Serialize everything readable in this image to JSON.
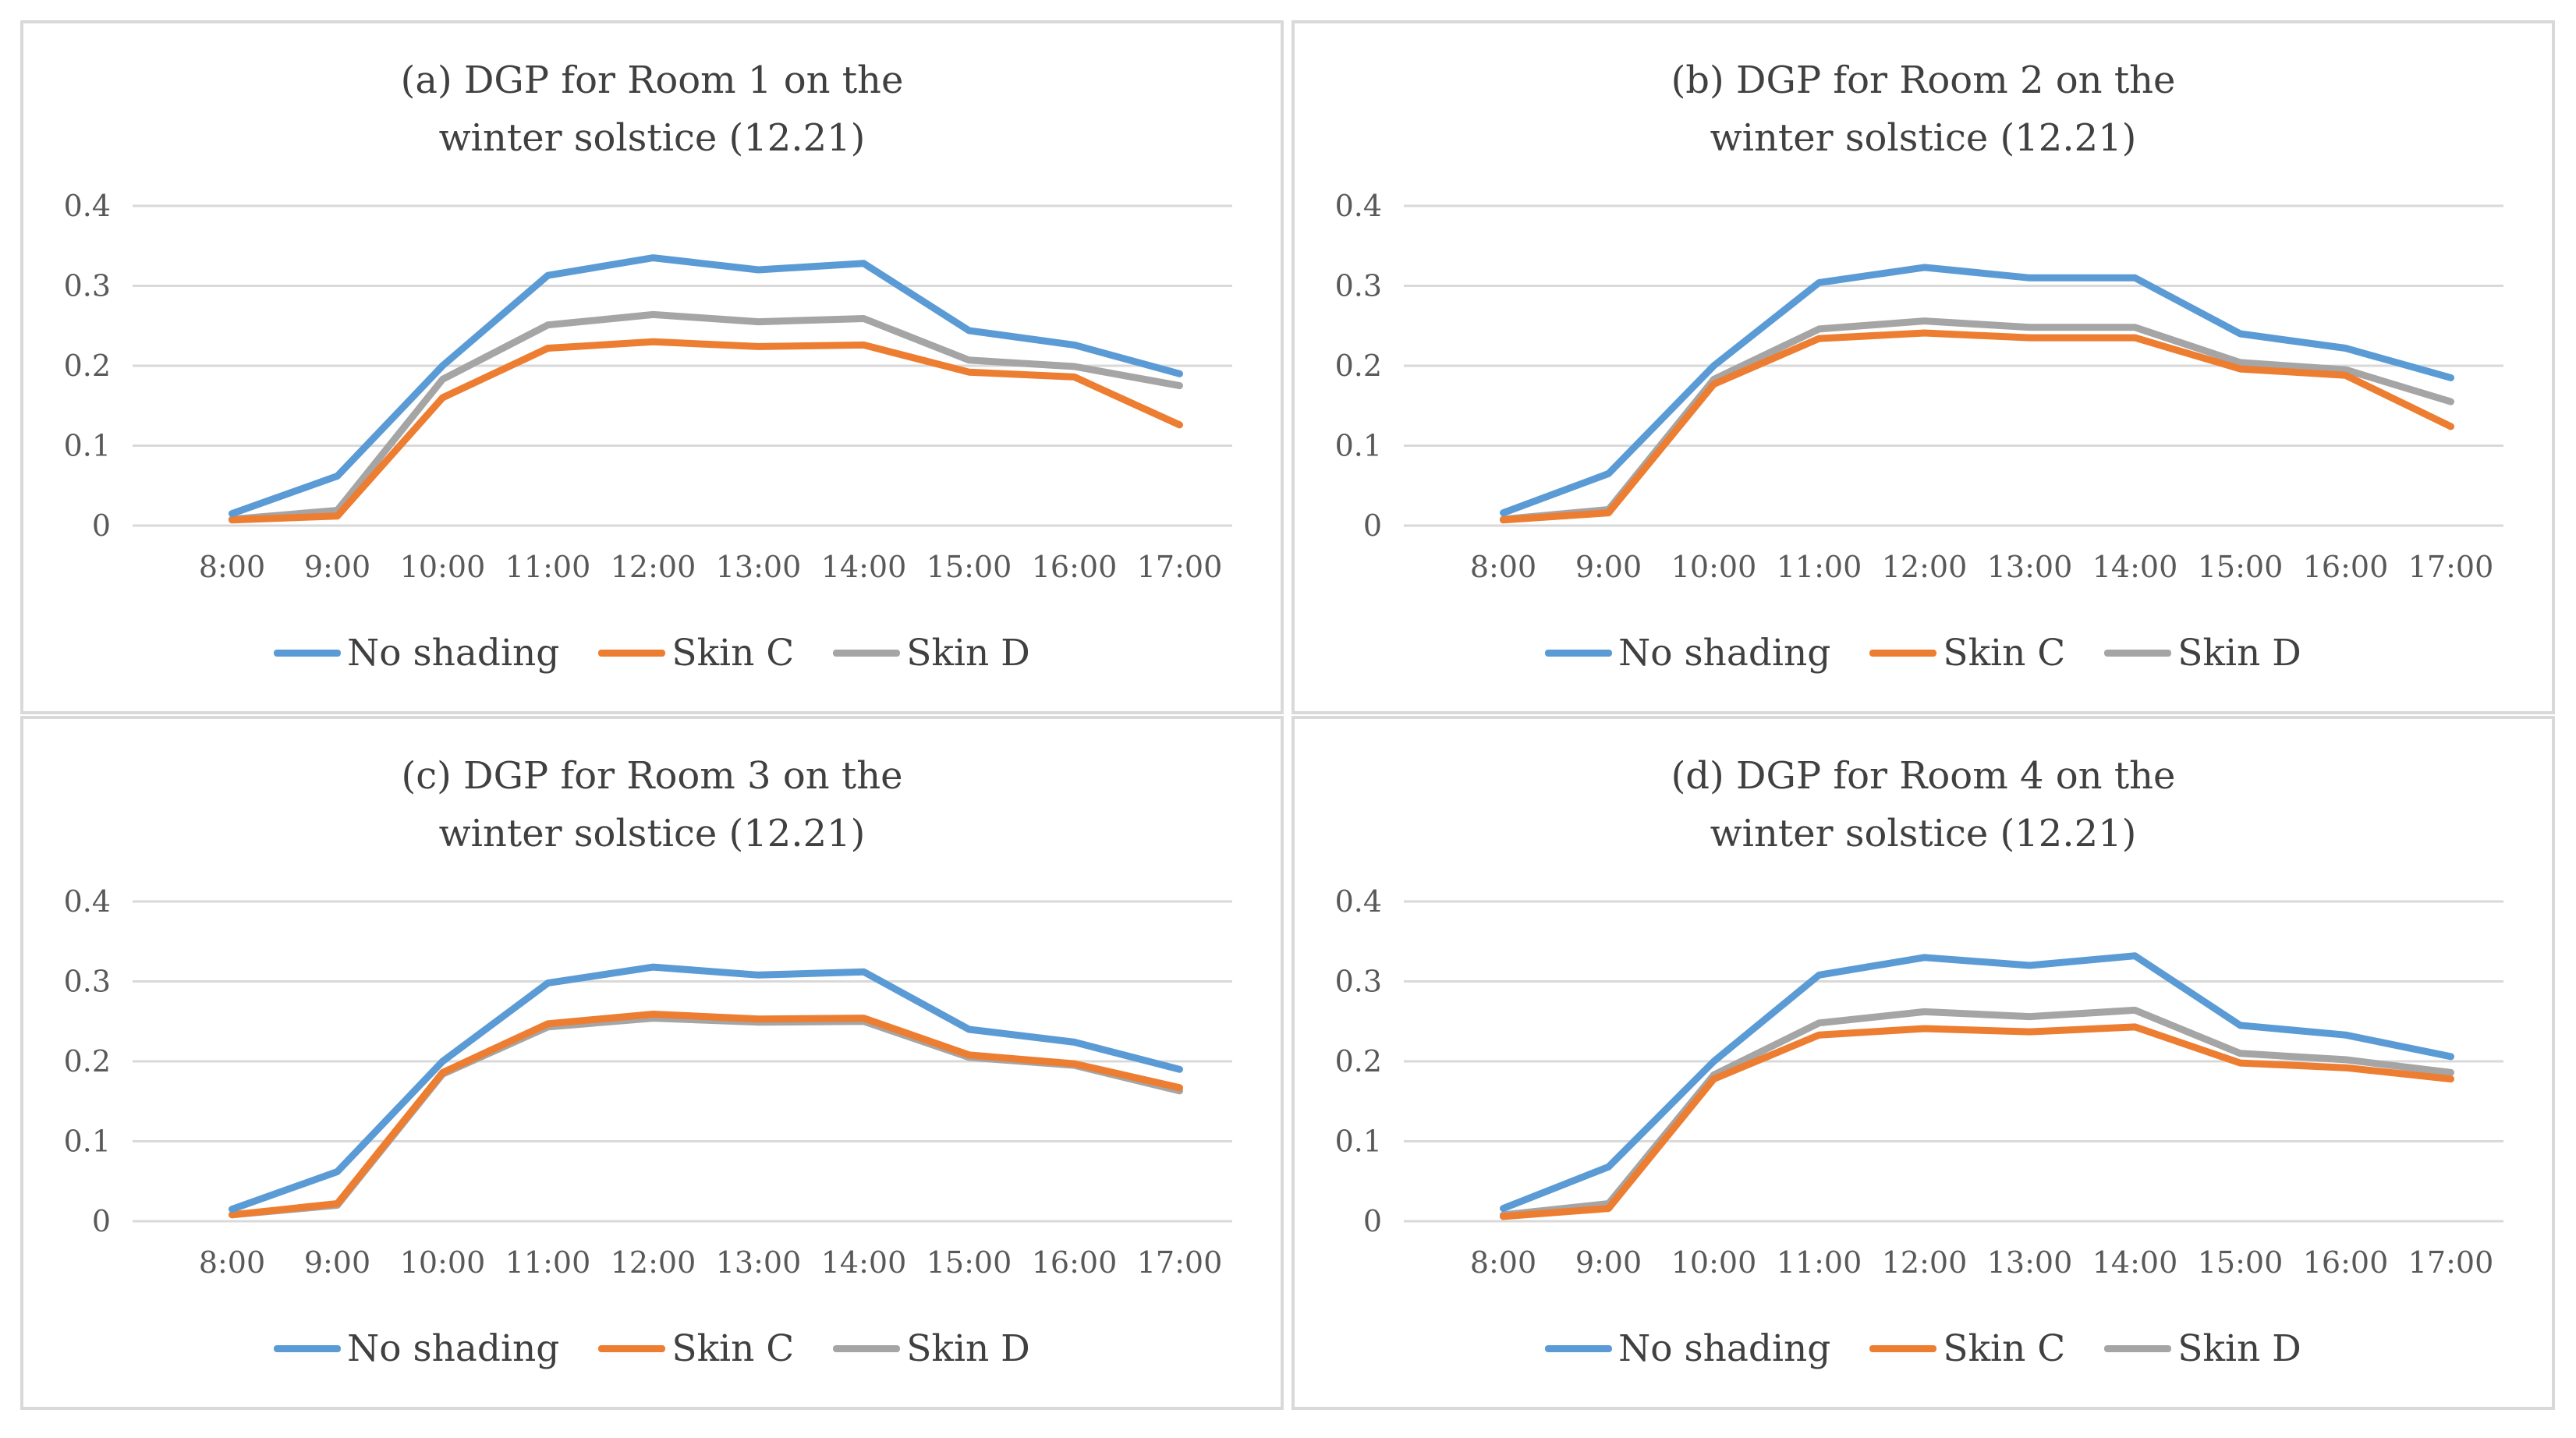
{
  "colors": {
    "no_shading": "#5b9bd5",
    "skin_c": "#ed7d31",
    "skin_d": "#a5a5a5"
  },
  "chart_data": [
    {
      "type": "line",
      "title_lines": [
        "(a) DGP for Room 1 on the",
        "winter solstice (12.21)"
      ],
      "categories": [
        "8:00",
        "9:00",
        "10:00",
        "11:00",
        "12:00",
        "13:00",
        "14:00",
        "15:00",
        "16:00",
        "17:00"
      ],
      "y_ticks": [
        "0",
        "0.1",
        "0.2",
        "0.3",
        "0.4"
      ],
      "ylim": [
        0,
        0.4
      ],
      "series": [
        {
          "name": "No shading",
          "values": [
            0.015,
            0.062,
            0.2,
            0.313,
            0.335,
            0.32,
            0.328,
            0.244,
            0.226,
            0.19
          ]
        },
        {
          "name": "Skin C",
          "values": [
            0.007,
            0.012,
            0.16,
            0.222,
            0.23,
            0.224,
            0.226,
            0.192,
            0.186,
            0.126
          ]
        },
        {
          "name": "Skin D",
          "values": [
            0.008,
            0.019,
            0.183,
            0.251,
            0.264,
            0.255,
            0.259,
            0.207,
            0.199,
            0.175
          ]
        }
      ]
    },
    {
      "type": "line",
      "title_lines": [
        "(b) DGP for Room 2 on the",
        "winter solstice (12.21)"
      ],
      "categories": [
        "8:00",
        "9:00",
        "10:00",
        "11:00",
        "12:00",
        "13:00",
        "14:00",
        "15:00",
        "16:00",
        "17:00"
      ],
      "y_ticks": [
        "0",
        "0.1",
        "0.2",
        "0.3",
        "0.4"
      ],
      "ylim": [
        0,
        0.4
      ],
      "series": [
        {
          "name": "No shading",
          "values": [
            0.016,
            0.065,
            0.2,
            0.304,
            0.323,
            0.31,
            0.31,
            0.24,
            0.222,
            0.185
          ]
        },
        {
          "name": "Skin C",
          "values": [
            0.007,
            0.016,
            0.177,
            0.234,
            0.241,
            0.235,
            0.235,
            0.196,
            0.188,
            0.124
          ]
        },
        {
          "name": "Skin D",
          "values": [
            0.008,
            0.02,
            0.183,
            0.246,
            0.256,
            0.248,
            0.248,
            0.204,
            0.195,
            0.155
          ]
        }
      ]
    },
    {
      "type": "line",
      "title_lines": [
        "(c) DGP for Room 3 on the",
        "winter solstice (12.21)"
      ],
      "categories": [
        "8:00",
        "9:00",
        "10:00",
        "11:00",
        "12:00",
        "13:00",
        "14:00",
        "15:00",
        "16:00",
        "17:00"
      ],
      "y_ticks": [
        "0",
        "0.1",
        "0.2",
        "0.3",
        "0.4"
      ],
      "ylim": [
        0,
        0.4
      ],
      "series": [
        {
          "name": "No shading",
          "values": [
            0.015,
            0.062,
            0.2,
            0.298,
            0.318,
            0.308,
            0.312,
            0.24,
            0.224,
            0.19
          ]
        },
        {
          "name": "Skin C",
          "values": [
            0.008,
            0.022,
            0.186,
            0.247,
            0.259,
            0.253,
            0.254,
            0.208,
            0.197,
            0.167
          ]
        },
        {
          "name": "Skin D",
          "values": [
            0.008,
            0.02,
            0.184,
            0.243,
            0.254,
            0.249,
            0.25,
            0.205,
            0.195,
            0.163
          ]
        }
      ]
    },
    {
      "type": "line",
      "title_lines": [
        "(d) DGP for Room 4 on the",
        "winter solstice (12.21)"
      ],
      "categories": [
        "8:00",
        "9:00",
        "10:00",
        "11:00",
        "12:00",
        "13:00",
        "14:00",
        "15:00",
        "16:00",
        "17:00"
      ],
      "y_ticks": [
        "0",
        "0.1",
        "0.2",
        "0.3",
        "0.4"
      ],
      "ylim": [
        0,
        0.4
      ],
      "series": [
        {
          "name": "No shading",
          "values": [
            0.016,
            0.068,
            0.2,
            0.308,
            0.33,
            0.32,
            0.332,
            0.245,
            0.233,
            0.206
          ]
        },
        {
          "name": "Skin C",
          "values": [
            0.006,
            0.016,
            0.178,
            0.233,
            0.241,
            0.237,
            0.243,
            0.198,
            0.192,
            0.178
          ]
        },
        {
          "name": "Skin D",
          "values": [
            0.008,
            0.022,
            0.183,
            0.248,
            0.262,
            0.256,
            0.264,
            0.21,
            0.202,
            0.186
          ]
        }
      ]
    }
  ]
}
